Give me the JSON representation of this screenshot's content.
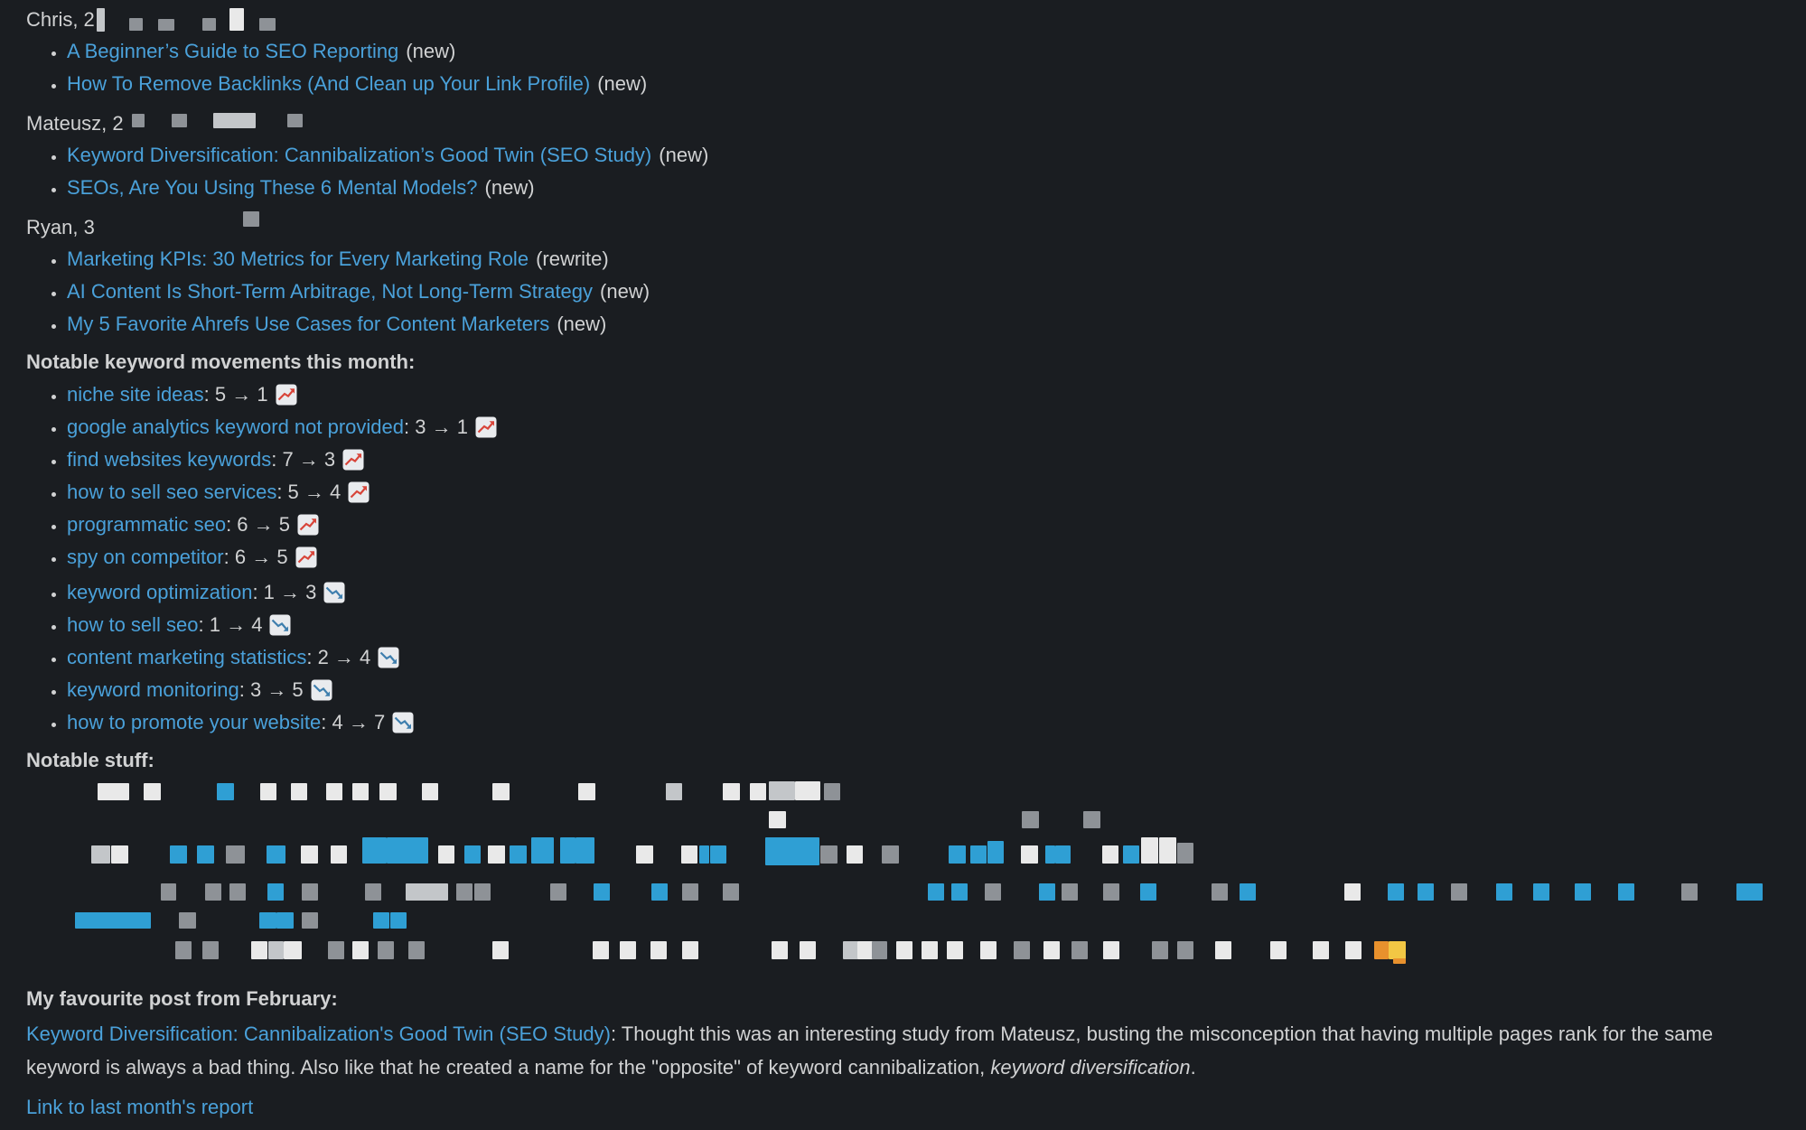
{
  "theme": {
    "background": "#1a1d21",
    "text": "#d1d2d3",
    "link": "#4aa1da",
    "trend_up_line": "#d8453a",
    "trend_down_line": "#3f7fae",
    "redaction_colors": {
      "w": "#e9e9e9",
      "lw": "#f7f7f7",
      "lg": "#c3c6c9",
      "g": "#8e9297",
      "dg": "#60646a",
      "b": "#2f9fd4",
      "db": "#1d82b8",
      "o": "#e8912d",
      "y": "#f2c744"
    }
  },
  "author_sections": [
    {
      "heading": "Chris, 2",
      "posts": [
        {
          "title": "A Beginner’s Guide to SEO Reporting",
          "tag": "(new)"
        },
        {
          "title": "How To Remove Backlinks (And Clean up Your Link Profile)",
          "tag": "(new)"
        }
      ],
      "redactions": [
        [
          78,
          1,
          9,
          26,
          "lg"
        ],
        [
          114,
          12,
          15,
          14,
          "g"
        ],
        [
          146,
          13,
          18,
          13,
          "g"
        ],
        [
          195,
          12,
          15,
          14,
          "g"
        ],
        [
          225,
          1,
          16,
          25,
          "w"
        ],
        [
          258,
          12,
          18,
          14,
          "g"
        ]
      ]
    },
    {
      "heading": "Mateusz, 2",
      "posts": [
        {
          "title": "Keyword Diversification: Cannibalization’s Good Twin (SEO Study)",
          "tag": "(new)"
        },
        {
          "title": "SEOs, Are You Using These 6 Mental Models?",
          "tag": "(new)"
        }
      ],
      "redactions": [
        [
          117,
          3,
          14,
          15,
          "g"
        ],
        [
          161,
          3,
          17,
          15,
          "g"
        ],
        [
          207,
          2,
          47,
          17,
          "lg"
        ],
        [
          289,
          3,
          17,
          15,
          "g"
        ]
      ]
    },
    {
      "heading": "Ryan, 3",
      "posts": [
        {
          "title": "Marketing KPIs: 30 Metrics for Every Marketing Role",
          "tag": "(rewrite)"
        },
        {
          "title": "AI Content Is Short-Term Arbitrage, Not Long-Term Strategy",
          "tag": "(new)"
        },
        {
          "title": "My 5 Favorite Ahrefs Use Cases for Content Marketers",
          "tag": "(new)"
        }
      ],
      "redactions": [
        [
          240,
          -4,
          18,
          17,
          "g"
        ]
      ]
    }
  ],
  "keyword_movements": {
    "heading": "Notable keyword movements this month:",
    "up": [
      {
        "keyword": "niche site ideas",
        "change": ": 5 → 1"
      },
      {
        "keyword": "google analytics keyword not provided",
        "change": ": 3 → 1"
      },
      {
        "keyword": "find websites keywords",
        "change": ": 7 → 3"
      },
      {
        "keyword": "how to sell seo services",
        "change": ": 5 → 4"
      },
      {
        "keyword": "programmatic seo",
        "change": ": 6 → 5"
      },
      {
        "keyword": "spy on competitor",
        "change": ": 6 → 5"
      }
    ],
    "down": [
      {
        "keyword": "keyword optimization",
        "change": ": 1 → 3"
      },
      {
        "keyword": "how to sell seo",
        "change": ": 1 → 4"
      },
      {
        "keyword": "content marketing statistics",
        "change": ": 2 → 4"
      },
      {
        "keyword": "keyword monitoring",
        "change": ": 3 → 5"
      },
      {
        "keyword": "how to promote your website",
        "change": ": 4 → 7"
      }
    ]
  },
  "notable_stuff": {
    "heading": "Notable stuff:",
    "redactions": [
      [
        108,
        2,
        35,
        19,
        "w"
      ],
      [
        159,
        2,
        19,
        19,
        "w"
      ],
      [
        240,
        2,
        19,
        19,
        "b"
      ],
      [
        288,
        2,
        18,
        19,
        "w"
      ],
      [
        322,
        2,
        18,
        19,
        "w"
      ],
      [
        361,
        2,
        18,
        19,
        "w"
      ],
      [
        390,
        2,
        18,
        19,
        "w"
      ],
      [
        420,
        2,
        19,
        19,
        "w"
      ],
      [
        467,
        2,
        18,
        19,
        "w"
      ],
      [
        545,
        2,
        19,
        19,
        "w"
      ],
      [
        640,
        2,
        19,
        19,
        "w"
      ],
      [
        737,
        2,
        18,
        19,
        "lg"
      ],
      [
        800,
        2,
        19,
        19,
        "w"
      ],
      [
        830,
        2,
        18,
        19,
        "w"
      ],
      [
        851,
        0,
        29,
        21,
        "lg"
      ],
      [
        880,
        0,
        28,
        21,
        "w"
      ],
      [
        912,
        2,
        18,
        19,
        "g"
      ],
      [
        851,
        33,
        19,
        19,
        "w"
      ],
      [
        1131,
        33,
        19,
        19,
        "g"
      ],
      [
        1199,
        33,
        19,
        19,
        "g"
      ],
      [
        101,
        71,
        21,
        20,
        "lg"
      ],
      [
        123,
        71,
        19,
        20,
        "w"
      ],
      [
        188,
        71,
        19,
        20,
        "b"
      ],
      [
        218,
        71,
        19,
        20,
        "b"
      ],
      [
        250,
        71,
        21,
        20,
        "g"
      ],
      [
        295,
        71,
        21,
        20,
        "b"
      ],
      [
        333,
        71,
        19,
        20,
        "w"
      ],
      [
        366,
        71,
        18,
        20,
        "w"
      ],
      [
        401,
        62,
        27,
        29,
        "b"
      ],
      [
        428,
        62,
        46,
        29,
        "b"
      ],
      [
        485,
        71,
        18,
        20,
        "w"
      ],
      [
        514,
        71,
        18,
        20,
        "b"
      ],
      [
        540,
        71,
        19,
        20,
        "w"
      ],
      [
        564,
        71,
        19,
        20,
        "b"
      ],
      [
        588,
        62,
        25,
        29,
        "b"
      ],
      [
        620,
        62,
        17,
        29,
        "b"
      ],
      [
        637,
        62,
        21,
        29,
        "b"
      ],
      [
        704,
        71,
        19,
        20,
        "w"
      ],
      [
        754,
        71,
        18,
        20,
        "w"
      ],
      [
        774,
        71,
        11,
        20,
        "b"
      ],
      [
        786,
        71,
        18,
        20,
        "b"
      ],
      [
        847,
        62,
        60,
        31,
        "b"
      ],
      [
        908,
        71,
        19,
        20,
        "g"
      ],
      [
        937,
        71,
        18,
        20,
        "w"
      ],
      [
        976,
        71,
        19,
        20,
        "g"
      ],
      [
        1050,
        71,
        19,
        20,
        "b"
      ],
      [
        1074,
        71,
        18,
        20,
        "b"
      ],
      [
        1093,
        66,
        18,
        25,
        "b"
      ],
      [
        1130,
        71,
        19,
        20,
        "w"
      ],
      [
        1157,
        71,
        11,
        20,
        "b"
      ],
      [
        1168,
        71,
        17,
        20,
        "b"
      ],
      [
        1220,
        71,
        18,
        20,
        "w"
      ],
      [
        1243,
        71,
        18,
        20,
        "b"
      ],
      [
        1263,
        62,
        19,
        29,
        "w"
      ],
      [
        1283,
        62,
        19,
        29,
        "w"
      ],
      [
        1303,
        68,
        18,
        23,
        "g"
      ],
      [
        178,
        113,
        17,
        19,
        "g"
      ],
      [
        227,
        113,
        18,
        19,
        "g"
      ],
      [
        254,
        113,
        18,
        19,
        "g"
      ],
      [
        296,
        113,
        18,
        19,
        "b"
      ],
      [
        334,
        113,
        18,
        19,
        "g"
      ],
      [
        404,
        113,
        18,
        19,
        "g"
      ],
      [
        449,
        113,
        47,
        19,
        "lg"
      ],
      [
        505,
        113,
        18,
        19,
        "g"
      ],
      [
        525,
        113,
        18,
        19,
        "g"
      ],
      [
        609,
        113,
        18,
        19,
        "g"
      ],
      [
        657,
        113,
        18,
        19,
        "b"
      ],
      [
        721,
        113,
        18,
        19,
        "b"
      ],
      [
        755,
        113,
        18,
        19,
        "g"
      ],
      [
        800,
        113,
        18,
        19,
        "g"
      ],
      [
        1027,
        113,
        18,
        19,
        "b"
      ],
      [
        1053,
        113,
        18,
        19,
        "b"
      ],
      [
        1090,
        113,
        18,
        19,
        "g"
      ],
      [
        1150,
        113,
        18,
        19,
        "b"
      ],
      [
        1175,
        113,
        18,
        19,
        "g"
      ],
      [
        1221,
        113,
        18,
        19,
        "g"
      ],
      [
        1262,
        113,
        18,
        19,
        "b"
      ],
      [
        1341,
        113,
        18,
        19,
        "g"
      ],
      [
        1372,
        113,
        18,
        19,
        "b"
      ],
      [
        1488,
        113,
        18,
        19,
        "w"
      ],
      [
        1536,
        113,
        18,
        19,
        "b"
      ],
      [
        1569,
        113,
        18,
        19,
        "b"
      ],
      [
        1606,
        113,
        18,
        19,
        "g"
      ],
      [
        1656,
        113,
        18,
        19,
        "b"
      ],
      [
        1697,
        113,
        18,
        19,
        "b"
      ],
      [
        1743,
        113,
        18,
        19,
        "b"
      ],
      [
        1791,
        113,
        18,
        19,
        "b"
      ],
      [
        1861,
        113,
        18,
        19,
        "g"
      ],
      [
        1922,
        113,
        15,
        19,
        "b"
      ],
      [
        1934,
        113,
        17,
        19,
        "b"
      ],
      [
        83,
        145,
        84,
        18,
        "b"
      ],
      [
        198,
        145,
        19,
        18,
        "g"
      ],
      [
        287,
        145,
        19,
        18,
        "b"
      ],
      [
        306,
        145,
        19,
        18,
        "b"
      ],
      [
        334,
        145,
        18,
        18,
        "g"
      ],
      [
        413,
        145,
        18,
        18,
        "b"
      ],
      [
        432,
        145,
        18,
        18,
        "b"
      ],
      [
        194,
        177,
        18,
        20,
        "g"
      ],
      [
        224,
        177,
        18,
        20,
        "g"
      ],
      [
        278,
        177,
        18,
        20,
        "w"
      ],
      [
        297,
        177,
        17,
        20,
        "lg"
      ],
      [
        314,
        177,
        20,
        20,
        "w"
      ],
      [
        363,
        177,
        18,
        20,
        "g"
      ],
      [
        390,
        177,
        18,
        20,
        "w"
      ],
      [
        418,
        177,
        18,
        20,
        "g"
      ],
      [
        452,
        177,
        18,
        20,
        "g"
      ],
      [
        545,
        177,
        18,
        20,
        "w"
      ],
      [
        656,
        177,
        18,
        20,
        "w"
      ],
      [
        686,
        177,
        18,
        20,
        "w"
      ],
      [
        720,
        177,
        18,
        20,
        "w"
      ],
      [
        755,
        177,
        18,
        20,
        "w"
      ],
      [
        854,
        177,
        18,
        20,
        "w"
      ],
      [
        885,
        177,
        18,
        20,
        "w"
      ],
      [
        933,
        177,
        17,
        20,
        "lg"
      ],
      [
        949,
        177,
        18,
        20,
        "w"
      ],
      [
        965,
        177,
        17,
        20,
        "g"
      ],
      [
        992,
        177,
        18,
        20,
        "w"
      ],
      [
        1020,
        177,
        18,
        20,
        "w"
      ],
      [
        1048,
        177,
        18,
        20,
        "w"
      ],
      [
        1085,
        177,
        18,
        20,
        "w"
      ],
      [
        1122,
        177,
        18,
        20,
        "g"
      ],
      [
        1155,
        177,
        18,
        20,
        "w"
      ],
      [
        1186,
        177,
        18,
        20,
        "g"
      ],
      [
        1221,
        177,
        18,
        20,
        "w"
      ],
      [
        1275,
        177,
        18,
        20,
        "g"
      ],
      [
        1303,
        177,
        18,
        20,
        "g"
      ],
      [
        1345,
        177,
        18,
        20,
        "w"
      ],
      [
        1406,
        177,
        18,
        20,
        "w"
      ],
      [
        1453,
        177,
        18,
        20,
        "w"
      ],
      [
        1489,
        177,
        18,
        20,
        "w"
      ],
      [
        1521,
        177,
        16,
        20,
        "o"
      ],
      [
        1537,
        177,
        19,
        20,
        "y"
      ],
      [
        1542,
        196,
        14,
        6,
        "o"
      ]
    ]
  },
  "favourite_post": {
    "heading": "My favourite post from February:",
    "link_text": "Keyword Diversification: Cannibalization's Good Twin (SEO Study)",
    "body_text": ": Thought this was an interesting study from Mateusz, busting the misconception that having multiple pages rank for the same keyword is always a bad thing. Also like that he created a name for the \"opposite\" of keyword cannibalization, ",
    "italic_text": "keyword diversification",
    "closing_text": "."
  },
  "footer": {
    "link_text": "Link to last month's report"
  }
}
